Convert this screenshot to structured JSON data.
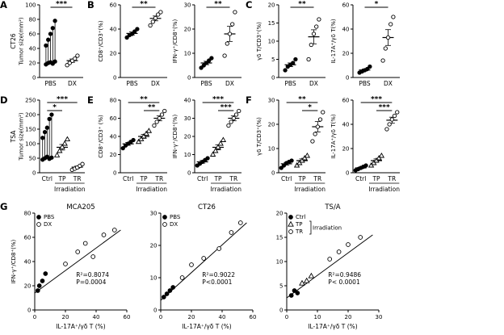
{
  "panels": {
    "a": {
      "label": "A"
    },
    "b": {
      "label": "B"
    },
    "c": {
      "label": "C"
    },
    "d": {
      "label": "D"
    },
    "e": {
      "label": "E"
    },
    "f": {
      "label": "F"
    },
    "g": {
      "label": "G"
    }
  },
  "chart_data": [
    {
      "id": "A",
      "type": "dot-column",
      "ylabel_lines": [
        "CT26",
        "Tumor size(mm²)"
      ],
      "ylim": [
        0,
        100
      ],
      "yticks": [
        0,
        20,
        40,
        60,
        80,
        100
      ],
      "categories": [
        "PBS",
        "DX"
      ],
      "groups": [
        {
          "name": "PBS",
          "marker": "filled-circle",
          "pairs": [
            [
              18,
              44
            ],
            [
              20,
              52
            ],
            [
              21,
              60
            ],
            [
              19,
              68
            ],
            [
              22,
              78
            ]
          ]
        },
        {
          "name": "DX",
          "marker": "open-circle",
          "values": [
            17,
            20,
            23,
            26,
            30
          ]
        }
      ],
      "significance": [
        {
          "from": 0,
          "to": 1,
          "label": "***"
        }
      ]
    },
    {
      "id": "B1",
      "type": "dot-column",
      "ylabel": "CD8⁺/CD3⁺(%)",
      "ylim": [
        0,
        60
      ],
      "yticks": [
        0,
        20,
        40,
        60
      ],
      "categories": [
        "PBS",
        "DX"
      ],
      "groups": [
        {
          "name": "PBS",
          "marker": "filled-circle",
          "values": [
            33,
            35,
            36,
            38,
            40
          ]
        },
        {
          "name": "DX",
          "marker": "open-circle",
          "values": [
            43,
            46,
            49,
            52,
            54
          ]
        }
      ],
      "significance": [
        {
          "from": 0,
          "to": 1,
          "label": "**"
        }
      ]
    },
    {
      "id": "B2",
      "type": "dot-column",
      "ylabel": "IFN-γ⁺/CD8⁺(%)",
      "ylim": [
        0,
        30
      ],
      "yticks": [
        0,
        10,
        20,
        30
      ],
      "categories": [
        "PBS",
        "DX"
      ],
      "groups": [
        {
          "name": "PBS",
          "marker": "filled-circle",
          "values": [
            4,
            5,
            6,
            7,
            8
          ]
        },
        {
          "name": "DX",
          "marker": "open-circle",
          "values": [
            9,
            14,
            18,
            22,
            27
          ]
        }
      ],
      "significance": [
        {
          "from": 0,
          "to": 1,
          "label": "**"
        }
      ]
    },
    {
      "id": "C1",
      "type": "dot-column",
      "ylabel": "γδ T/CD3⁺(%)",
      "ylim": [
        0,
        20
      ],
      "yticks": [
        0,
        5,
        10,
        15,
        20
      ],
      "categories": [
        "PBS",
        "DX"
      ],
      "groups": [
        {
          "name": "PBS",
          "marker": "filled-circle",
          "values": [
            2,
            3,
            3.5,
            4,
            5
          ]
        },
        {
          "name": "DX",
          "marker": "open-circle",
          "values": [
            5,
            9,
            12,
            14,
            16
          ]
        }
      ],
      "significance": [
        {
          "from": 0,
          "to": 1,
          "label": "**"
        }
      ]
    },
    {
      "id": "C2",
      "type": "dot-column",
      "ylabel": "IL-17A⁺/γδ T(%)",
      "ylim": [
        0,
        60
      ],
      "yticks": [
        0,
        20,
        40,
        60
      ],
      "categories": [
        "PBS",
        "DX"
      ],
      "groups": [
        {
          "name": "PBS",
          "marker": "filled-circle",
          "values": [
            4,
            5,
            6,
            7,
            9
          ]
        },
        {
          "name": "DX",
          "marker": "open-circle",
          "values": [
            14,
            24,
            33,
            44,
            50
          ]
        }
      ],
      "significance": [
        {
          "from": 0,
          "to": 1,
          "label": "*"
        }
      ]
    },
    {
      "id": "D",
      "type": "dot-column",
      "ylabel_lines": [
        "TSA",
        "Tumor size(mm²)"
      ],
      "ylim": [
        0,
        250
      ],
      "yticks": [
        0,
        50,
        100,
        150,
        200,
        250
      ],
      "categories": [
        "Ctrl",
        "TP",
        "TR"
      ],
      "groups": [
        {
          "name": "Ctrl",
          "marker": "filled-circle",
          "pairs": [
            [
              45,
              120
            ],
            [
              50,
              140
            ],
            [
              55,
              155
            ],
            [
              48,
              185
            ],
            [
              52,
              200
            ]
          ]
        },
        {
          "name": "TP",
          "marker": "open-triangle",
          "values": [
            60,
            75,
            88,
            100,
            115
          ]
        },
        {
          "name": "TR",
          "marker": "open-circle",
          "values": [
            10,
            14,
            18,
            24,
            30
          ]
        }
      ],
      "significance": [
        {
          "from": 0,
          "to": 2,
          "label": "***"
        },
        {
          "from": 0,
          "to": 1,
          "label": "*"
        }
      ],
      "xgroup": {
        "label": "Irradiation",
        "from": 1,
        "to": 2
      }
    },
    {
      "id": "E1",
      "type": "dot-column",
      "ylabel": "CD8⁺/CD3⁺ (%)",
      "ylim": [
        0,
        80
      ],
      "yticks": [
        0,
        20,
        40,
        60,
        80
      ],
      "categories": [
        "Ctrl",
        "TP",
        "TR"
      ],
      "groups": [
        {
          "name": "Ctrl",
          "marker": "filled-circle",
          "values": [
            27,
            30,
            32,
            34,
            36
          ]
        },
        {
          "name": "TP",
          "marker": "open-triangle",
          "values": [
            34,
            37,
            40,
            43,
            46
          ]
        },
        {
          "name": "TR",
          "marker": "open-circle",
          "values": [
            52,
            56,
            60,
            64,
            68
          ]
        }
      ],
      "significance": [
        {
          "from": 0,
          "to": 2,
          "label": "**"
        },
        {
          "from": 1,
          "to": 2,
          "label": "**"
        }
      ],
      "xgroup": {
        "label": "Irradiation",
        "from": 1,
        "to": 2
      }
    },
    {
      "id": "E2",
      "type": "dot-column",
      "ylabel": "IFN-γ⁺/CD8⁺(%)",
      "ylim": [
        0,
        40
      ],
      "yticks": [
        0,
        10,
        20,
        30,
        40
      ],
      "categories": [
        "Ctrl",
        "TP",
        "TR"
      ],
      "groups": [
        {
          "name": "Ctrl",
          "marker": "filled-circle",
          "values": [
            4,
            5,
            6,
            7,
            8
          ]
        },
        {
          "name": "TP",
          "marker": "open-triangle",
          "values": [
            10,
            12,
            14,
            16,
            18
          ]
        },
        {
          "name": "TR",
          "marker": "open-circle",
          "values": [
            26,
            28,
            30,
            32,
            34
          ]
        }
      ],
      "significance": [
        {
          "from": 0,
          "to": 2,
          "label": "***"
        },
        {
          "from": 1,
          "to": 2,
          "label": "***"
        }
      ],
      "xgroup": {
        "label": "Irradiation",
        "from": 1,
        "to": 2
      }
    },
    {
      "id": "F1",
      "type": "dot-column",
      "ylabel": "γδ T/CD3⁺(%)",
      "ylim": [
        0,
        30
      ],
      "yticks": [
        0,
        10,
        20,
        30
      ],
      "categories": [
        "Ctrl",
        "TP",
        "TR"
      ],
      "groups": [
        {
          "name": "Ctrl",
          "marker": "filled-circle",
          "values": [
            2,
            3,
            4,
            4.5,
            5
          ]
        },
        {
          "name": "TP",
          "marker": "open-triangle",
          "values": [
            3,
            4,
            5,
            6,
            7
          ]
        },
        {
          "name": "TR",
          "marker": "open-circle",
          "values": [
            13,
            16,
            19,
            22,
            25
          ]
        }
      ],
      "significance": [
        {
          "from": 0,
          "to": 2,
          "label": "**"
        },
        {
          "from": 1,
          "to": 2,
          "label": "*"
        }
      ],
      "xgroup": {
        "label": "Irradiation",
        "from": 1,
        "to": 2
      }
    },
    {
      "id": "F2",
      "type": "dot-column",
      "ylabel": "IL-17A⁺/γδ T(%)",
      "ylim": [
        0,
        60
      ],
      "yticks": [
        0,
        20,
        40,
        60
      ],
      "categories": [
        "Ctrl",
        "TP",
        "TR"
      ],
      "groups": [
        {
          "name": "Ctrl",
          "marker": "filled-circle",
          "values": [
            2,
            3,
            4,
            5,
            6
          ]
        },
        {
          "name": "TP",
          "marker": "open-triangle",
          "values": [
            6,
            8,
            10,
            12,
            14
          ]
        },
        {
          "name": "TR",
          "marker": "open-circle",
          "values": [
            36,
            40,
            44,
            47,
            50
          ]
        }
      ],
      "significance": [
        {
          "from": 0,
          "to": 2,
          "label": "***"
        },
        {
          "from": 1,
          "to": 2,
          "label": "***"
        }
      ],
      "xgroup": {
        "label": "Irradiation",
        "from": 1,
        "to": 2
      }
    },
    {
      "id": "G1",
      "type": "scatter-xy",
      "title": "MCA205",
      "xlabel": "IL-17A⁺/γδ T (%)",
      "ylabel": "IFN-γ⁺/CD8⁺(%)",
      "xlim": [
        0,
        60
      ],
      "xticks": [
        0,
        20,
        40,
        60
      ],
      "ylim": [
        0,
        80
      ],
      "yticks": [
        0,
        20,
        40,
        60,
        80
      ],
      "groups": [
        {
          "name": "PBS",
          "marker": "filled-circle",
          "points": [
            [
              2,
              16
            ],
            [
              3,
              20
            ],
            [
              5,
              24
            ],
            [
              7,
              30
            ]
          ]
        },
        {
          "name": "DX",
          "marker": "open-circle",
          "points": [
            [
              20,
              38
            ],
            [
              28,
              48
            ],
            [
              33,
              55
            ],
            [
              38,
              44
            ],
            [
              45,
              62
            ],
            [
              52,
              66
            ]
          ]
        }
      ],
      "regression": {
        "x1": 0,
        "y1": 14,
        "x2": 56,
        "y2": 66
      },
      "stats": [
        "R²=0.8074",
        "P=0.0004"
      ],
      "legend": {
        "items": [
          {
            "label": "PBS",
            "marker": "filled-circle"
          },
          {
            "label": "DX",
            "marker": "open-circle"
          }
        ]
      }
    },
    {
      "id": "G2",
      "type": "scatter-xy",
      "title": "CT26",
      "xlabel": "IL-17A⁺/γδ T (%)",
      "xlim": [
        0,
        60
      ],
      "xticks": [
        0,
        20,
        40,
        60
      ],
      "ylim": [
        0,
        30
      ],
      "yticks": [
        0,
        10,
        20,
        30
      ],
      "groups": [
        {
          "name": "PBS",
          "marker": "filled-circle",
          "points": [
            [
              2,
              4
            ],
            [
              4,
              5
            ],
            [
              6,
              6
            ],
            [
              8,
              7
            ]
          ]
        },
        {
          "name": "DX",
          "marker": "open-circle",
          "points": [
            [
              14,
              10
            ],
            [
              20,
              14
            ],
            [
              28,
              16
            ],
            [
              38,
              19
            ],
            [
              46,
              24
            ],
            [
              52,
              27
            ]
          ]
        }
      ],
      "regression": {
        "x1": 0,
        "y1": 3,
        "x2": 56,
        "y2": 27
      },
      "stats": [
        "R²=0.9022",
        "P<0.0001"
      ],
      "legend": {
        "items": [
          {
            "label": "PBS",
            "marker": "filled-circle"
          },
          {
            "label": "DX",
            "marker": "open-circle"
          }
        ]
      }
    },
    {
      "id": "G3",
      "type": "scatter-xy",
      "title": "TS/A",
      "xlabel": "IL-17A⁺/γδ T (%)",
      "xlim": [
        0,
        30
      ],
      "xticks": [
        0,
        10,
        20,
        30
      ],
      "ylim": [
        0,
        20
      ],
      "yticks": [
        0,
        5,
        10,
        15,
        20
      ],
      "groups": [
        {
          "name": "Ctrl",
          "marker": "filled-circle",
          "points": [
            [
              1.5,
              3
            ],
            [
              2.5,
              4
            ],
            [
              3.5,
              3.5
            ]
          ]
        },
        {
          "name": "TP",
          "marker": "open-triangle",
          "points": [
            [
              5,
              5.5
            ],
            [
              6.5,
              6
            ],
            [
              8,
              7
            ]
          ]
        },
        {
          "name": "TR",
          "marker": "open-circle",
          "points": [
            [
              14,
              10.5
            ],
            [
              17,
              12
            ],
            [
              20,
              13.5
            ],
            [
              24,
              15
            ]
          ]
        }
      ],
      "regression": {
        "x1": 0,
        "y1": 2.5,
        "x2": 28,
        "y2": 15.5
      },
      "stats": [
        "R²=0.9486",
        "P< 0.0001"
      ],
      "legend": {
        "items": [
          {
            "label": "Ctrl",
            "marker": "filled-circle"
          },
          {
            "label": "TP",
            "marker": "open-triangle"
          },
          {
            "label": "TR",
            "marker": "open-circle"
          }
        ],
        "bracket": {
          "from": 1,
          "to": 2,
          "label": "Irradiation"
        }
      }
    }
  ]
}
